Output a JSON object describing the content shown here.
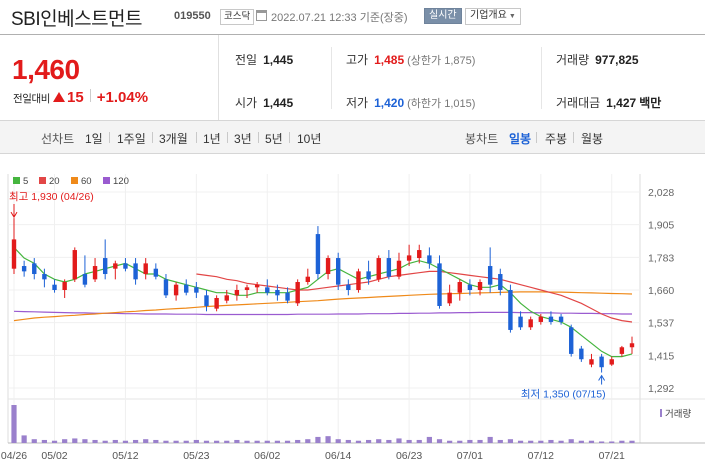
{
  "header": {
    "name": "SBI인베스트먼트",
    "code": "019550",
    "market": "코스닥",
    "datetime": "2022.07.21 12:33",
    "basis": "기준(장중)",
    "realtime": "실시간",
    "company_overview": "기업개요"
  },
  "price": {
    "current": "1,460",
    "change_label": "전일대비",
    "change": "15",
    "change_rate": "+1.04%"
  },
  "stats": {
    "prev_close_label": "전일",
    "prev_close": "1,445",
    "open_label": "시가",
    "open": "1,445",
    "high_label": "고가",
    "high": "1,485",
    "upper_limit": "(상한가 1,875)",
    "low_label": "저가",
    "low": "1,420",
    "lower_limit": "(하한가 1,015)",
    "volume_label": "거래량",
    "volume": "977,825",
    "amount_label": "거래대금",
    "amount": "1,427",
    "amount_unit": "백만"
  },
  "tabs": {
    "line_label": "선차트",
    "periods": [
      "1일",
      "1주일",
      "3개월",
      "1년",
      "3년",
      "5년",
      "10년"
    ],
    "candle_label": "봉차트",
    "candles": [
      "일봉",
      "주봉",
      "월봉"
    ],
    "active_candle": "일봉"
  },
  "colors": {
    "up": "#e21b1b",
    "down": "#1d62d6",
    "ma5": "#45b53e",
    "ma20": "#e24646",
    "ma60": "#ef8a1a",
    "ma120": "#9a5bd0",
    "volume": "#9a80cc"
  },
  "chart_data": {
    "type": "candlestick",
    "legend": [
      "5",
      "20",
      "60",
      "120"
    ],
    "y_ticks": [
      "2,028",
      "1,905",
      "1,783",
      "1,660",
      "1,537",
      "1,415",
      "1,292"
    ],
    "ylim": [
      1292,
      2028
    ],
    "x_ticks": [
      {
        "label": "04/26",
        "index": 0
      },
      {
        "label": "05/02",
        "index": 4
      },
      {
        "label": "05/12",
        "index": 11
      },
      {
        "label": "05/23",
        "index": 18
      },
      {
        "label": "06/02",
        "index": 25
      },
      {
        "label": "06/14",
        "index": 32
      },
      {
        "label": "06/23",
        "index": 39
      },
      {
        "label": "07/01",
        "index": 45
      },
      {
        "label": "07/12",
        "index": 52
      },
      {
        "label": "07/21",
        "index": 59
      }
    ],
    "max_annotation": "최고 1,930 (04/26)",
    "min_annotation": "최저 1,350 (07/15)",
    "volume_label": "거래량",
    "candles": [
      {
        "o": 1740,
        "h": 1930,
        "l": 1720,
        "c": 1850
      },
      {
        "o": 1750,
        "h": 1770,
        "l": 1710,
        "c": 1730
      },
      {
        "o": 1760,
        "h": 1780,
        "l": 1700,
        "c": 1720
      },
      {
        "o": 1720,
        "h": 1740,
        "l": 1670,
        "c": 1700
      },
      {
        "o": 1680,
        "h": 1700,
        "l": 1650,
        "c": 1660
      },
      {
        "o": 1660,
        "h": 1700,
        "l": 1630,
        "c": 1690
      },
      {
        "o": 1700,
        "h": 1820,
        "l": 1690,
        "c": 1810
      },
      {
        "o": 1720,
        "h": 1790,
        "l": 1670,
        "c": 1680
      },
      {
        "o": 1700,
        "h": 1780,
        "l": 1690,
        "c": 1750
      },
      {
        "o": 1780,
        "h": 1850,
        "l": 1700,
        "c": 1720
      },
      {
        "o": 1740,
        "h": 1770,
        "l": 1700,
        "c": 1760
      },
      {
        "o": 1760,
        "h": 1780,
        "l": 1730,
        "c": 1740
      },
      {
        "o": 1760,
        "h": 1780,
        "l": 1680,
        "c": 1700
      },
      {
        "o": 1720,
        "h": 1780,
        "l": 1700,
        "c": 1760
      },
      {
        "o": 1740,
        "h": 1760,
        "l": 1700,
        "c": 1710
      },
      {
        "o": 1700,
        "h": 1720,
        "l": 1630,
        "c": 1640
      },
      {
        "o": 1640,
        "h": 1690,
        "l": 1620,
        "c": 1680
      },
      {
        "o": 1680,
        "h": 1700,
        "l": 1640,
        "c": 1650
      },
      {
        "o": 1670,
        "h": 1690,
        "l": 1630,
        "c": 1650
      },
      {
        "o": 1640,
        "h": 1660,
        "l": 1580,
        "c": 1600
      },
      {
        "o": 1590,
        "h": 1640,
        "l": 1580,
        "c": 1630
      },
      {
        "o": 1620,
        "h": 1660,
        "l": 1610,
        "c": 1640
      },
      {
        "o": 1640,
        "h": 1680,
        "l": 1620,
        "c": 1660
      },
      {
        "o": 1660,
        "h": 1680,
        "l": 1630,
        "c": 1670
      },
      {
        "o": 1670,
        "h": 1690,
        "l": 1650,
        "c": 1680
      },
      {
        "o": 1670,
        "h": 1700,
        "l": 1640,
        "c": 1650
      },
      {
        "o": 1660,
        "h": 1680,
        "l": 1620,
        "c": 1640
      },
      {
        "o": 1650,
        "h": 1670,
        "l": 1610,
        "c": 1620
      },
      {
        "o": 1610,
        "h": 1700,
        "l": 1600,
        "c": 1690
      },
      {
        "o": 1690,
        "h": 1740,
        "l": 1680,
        "c": 1710
      },
      {
        "o": 1870,
        "h": 1900,
        "l": 1700,
        "c": 1720
      },
      {
        "o": 1720,
        "h": 1790,
        "l": 1700,
        "c": 1780
      },
      {
        "o": 1780,
        "h": 1800,
        "l": 1660,
        "c": 1680
      },
      {
        "o": 1680,
        "h": 1700,
        "l": 1640,
        "c": 1660
      },
      {
        "o": 1660,
        "h": 1740,
        "l": 1650,
        "c": 1730
      },
      {
        "o": 1730,
        "h": 1770,
        "l": 1680,
        "c": 1700
      },
      {
        "o": 1700,
        "h": 1790,
        "l": 1690,
        "c": 1780
      },
      {
        "o": 1780,
        "h": 1810,
        "l": 1700,
        "c": 1710
      },
      {
        "o": 1710,
        "h": 1800,
        "l": 1700,
        "c": 1770
      },
      {
        "o": 1770,
        "h": 1830,
        "l": 1750,
        "c": 1790
      },
      {
        "o": 1780,
        "h": 1830,
        "l": 1760,
        "c": 1810
      },
      {
        "o": 1790,
        "h": 1820,
        "l": 1740,
        "c": 1760
      },
      {
        "o": 1760,
        "h": 1790,
        "l": 1590,
        "c": 1600
      },
      {
        "o": 1610,
        "h": 1680,
        "l": 1600,
        "c": 1650
      },
      {
        "o": 1650,
        "h": 1700,
        "l": 1620,
        "c": 1690
      },
      {
        "o": 1680,
        "h": 1700,
        "l": 1640,
        "c": 1660
      },
      {
        "o": 1660,
        "h": 1700,
        "l": 1640,
        "c": 1690
      },
      {
        "o": 1750,
        "h": 1820,
        "l": 1650,
        "c": 1680
      },
      {
        "o": 1720,
        "h": 1740,
        "l": 1640,
        "c": 1660
      },
      {
        "o": 1660,
        "h": 1680,
        "l": 1500,
        "c": 1510
      },
      {
        "o": 1560,
        "h": 1580,
        "l": 1510,
        "c": 1520
      },
      {
        "o": 1520,
        "h": 1560,
        "l": 1510,
        "c": 1550
      },
      {
        "o": 1540,
        "h": 1570,
        "l": 1530,
        "c": 1560
      },
      {
        "o": 1560,
        "h": 1580,
        "l": 1530,
        "c": 1540
      },
      {
        "o": 1560,
        "h": 1570,
        "l": 1530,
        "c": 1540
      },
      {
        "o": 1520,
        "h": 1530,
        "l": 1410,
        "c": 1420
      },
      {
        "o": 1440,
        "h": 1450,
        "l": 1390,
        "c": 1400
      },
      {
        "o": 1380,
        "h": 1420,
        "l": 1370,
        "c": 1400
      },
      {
        "o": 1410,
        "h": 1420,
        "l": 1350,
        "c": 1370
      },
      {
        "o": 1380,
        "h": 1410,
        "l": 1375,
        "c": 1400
      },
      {
        "o": 1420,
        "h": 1450,
        "l": 1410,
        "c": 1445
      },
      {
        "o": 1445,
        "h": 1485,
        "l": 1420,
        "c": 1460
      }
    ],
    "volumes": [
      100,
      20,
      10,
      8,
      6,
      10,
      12,
      10,
      8,
      6,
      8,
      6,
      8,
      10,
      8,
      6,
      6,
      6,
      8,
      6,
      6,
      6,
      8,
      6,
      6,
      6,
      6,
      6,
      8,
      10,
      16,
      18,
      10,
      8,
      6,
      8,
      10,
      8,
      12,
      8,
      8,
      16,
      10,
      6,
      6,
      8,
      8,
      16,
      8,
      10,
      6,
      6,
      6,
      8,
      6,
      10,
      6,
      6,
      4,
      4,
      6,
      6
    ],
    "ma5": [
      1820,
      1780,
      1760,
      1720,
      1700,
      1690,
      1700,
      1720,
      1730,
      1740,
      1750,
      1760,
      1740,
      1720,
      1720,
      1700,
      1690,
      1680,
      1670,
      1660,
      1650,
      1650,
      1640,
      1640,
      1650,
      1650,
      1650,
      1650,
      1660,
      1670,
      1700,
      1730,
      1740,
      1720,
      1700,
      1710,
      1720,
      1730,
      1740,
      1760,
      1770,
      1760,
      1740,
      1720,
      1700,
      1680,
      1670,
      1670,
      1680,
      1650,
      1610,
      1580,
      1560,
      1550,
      1540,
      1520,
      1490,
      1460,
      1430,
      1410,
      1410,
      1420
    ],
    "ma20": [
      null,
      null,
      null,
      null,
      null,
      null,
      null,
      null,
      null,
      null,
      null,
      null,
      null,
      null,
      null,
      null,
      null,
      null,
      1720,
      1715,
      1710,
      1700,
      1695,
      1685,
      1680,
      1675,
      1670,
      1665,
      1660,
      1660,
      1665,
      1670,
      1675,
      1680,
      1685,
      1690,
      1700,
      1710,
      1715,
      1720,
      1725,
      1730,
      1730,
      1725,
      1720,
      1715,
      1710,
      1705,
      1700,
      1690,
      1680,
      1670,
      1660,
      1650,
      1640,
      1625,
      1610,
      1590,
      1570,
      1555,
      1545,
      1540
    ],
    "ma60": [
      1545,
      1550,
      1555,
      1558,
      1560,
      1563,
      1565,
      1568,
      1570,
      1573,
      1575,
      1578,
      1580,
      1583,
      1585,
      1588,
      1590,
      1592,
      1595,
      1598,
      1600,
      1602,
      1604,
      1606,
      1608,
      1610,
      1612,
      1614,
      1616,
      1618,
      1620,
      1623,
      1626,
      1628,
      1630,
      1632,
      1634,
      1636,
      1638,
      1640,
      1642,
      1644,
      1645,
      1646,
      1647,
      1648,
      1649,
      1650,
      1651,
      1652,
      1653,
      1653,
      1653,
      1652,
      1652,
      1651,
      1650,
      1649,
      1648,
      1647,
      1646,
      1645
    ],
    "ma120": [
      1580,
      1579,
      1578,
      1577,
      1576,
      1575,
      1574,
      1574,
      1573,
      1572,
      1572,
      1571,
      1571,
      1570,
      1570,
      1570,
      1569,
      1569,
      1569,
      1568,
      1568,
      1568,
      1568,
      1568,
      1568,
      1568,
      1568,
      1568,
      1569,
      1569,
      1569,
      1569,
      1570,
      1570,
      1570,
      1571,
      1571,
      1571,
      1572,
      1572,
      1573,
      1573,
      1574,
      1574,
      1575,
      1575,
      1576,
      1576,
      1576,
      1576,
      1575,
      1575,
      1574,
      1574,
      1573,
      1573,
      1572,
      1572,
      1571,
      1571,
      1570,
      1570
    ]
  }
}
